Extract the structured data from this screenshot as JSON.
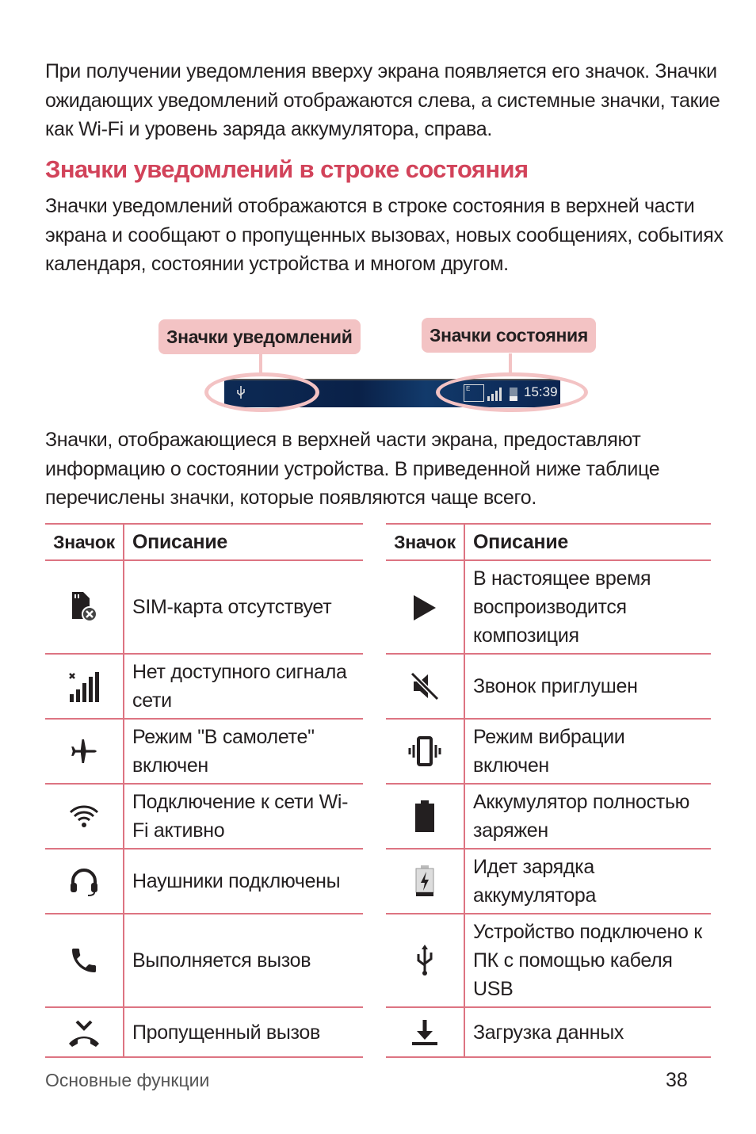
{
  "intro": "При получении уведомления вверху экрана появляется его значок. Значки ожидающих уведомлений отображаются слева, а системные значки, такие как Wi-Fi и уровень заряда аккумулятора, справа.",
  "section_title": "Значки уведомлений в строке состояния",
  "section_text": "Значки уведомлений отображаются в строке состояния в верхней части экрана и сообщают о пропущенных вызовах, новых сообщениях, событиях календаря, состоянии устройства и многом другом.",
  "diagram": {
    "callout_left": "Значки уведомлений",
    "callout_right": "Значки состояния",
    "time": "15:39",
    "network_letter": "E"
  },
  "table_intro": "Значки, отображающиеся в верхней части экрана, предоставляют информацию о состоянии устройства. В приведенной ниже таблице перечислены значки, которые появляются чаще всего.",
  "table_headers": {
    "icon": "Значок",
    "desc": "Описание"
  },
  "left_rows": [
    {
      "icon": "sim-missing-icon",
      "desc": "SIM-карта отсутствует"
    },
    {
      "icon": "no-signal-icon",
      "desc": "Нет доступного сигнала сети"
    },
    {
      "icon": "airplane-icon",
      "desc": "Режим \"В самолете\" включен"
    },
    {
      "icon": "wifi-icon",
      "desc": "Подключение к сети Wi-Fi активно"
    },
    {
      "icon": "headset-icon",
      "desc": "Наушники подключены"
    },
    {
      "icon": "phone-call-icon",
      "desc": "Выполняется вызов"
    },
    {
      "icon": "missed-call-icon",
      "desc": "Пропущенный вызов"
    }
  ],
  "right_rows": [
    {
      "icon": "play-icon",
      "desc": "В настоящее время воспроизводится композиция"
    },
    {
      "icon": "ringer-muted-icon",
      "desc": "Звонок приглушен"
    },
    {
      "icon": "vibrate-icon",
      "desc": "Режим вибрации включен"
    },
    {
      "icon": "battery-full-icon",
      "desc": "Аккумулятор полностью заряжен"
    },
    {
      "icon": "battery-charging-icon",
      "desc": "Идет зарядка аккумулятора"
    },
    {
      "icon": "usb-icon",
      "desc": "Устройство подключено к ПК с помощью кабеля USB"
    },
    {
      "icon": "download-icon",
      "desc": "Загрузка данных"
    }
  ],
  "footer": {
    "section": "Основные функции",
    "page": "38"
  },
  "colors": {
    "accent": "#d2435a",
    "callout": "#f3c3c4",
    "table_rule": "#dd7482"
  }
}
